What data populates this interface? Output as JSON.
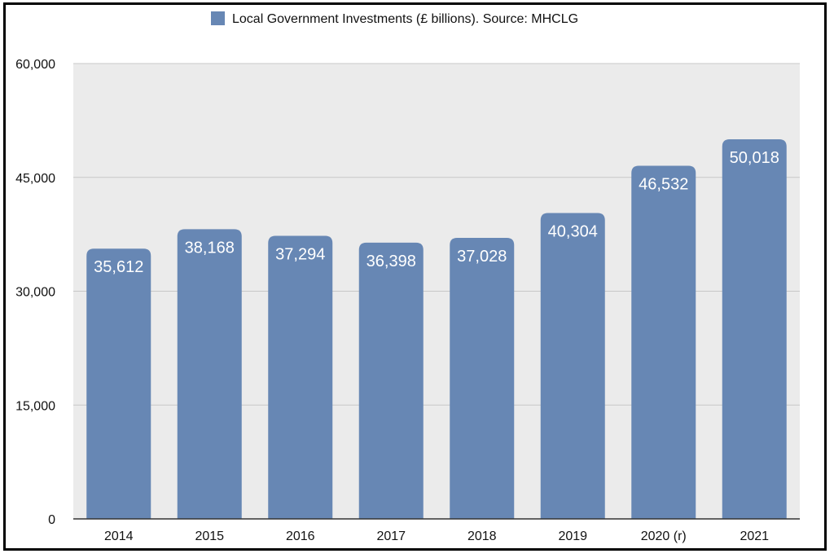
{
  "chart_data": {
    "type": "bar",
    "categories": [
      "2014",
      "2015",
      "2016",
      "2017",
      "2018",
      "2019",
      "2020 (r)",
      "2021"
    ],
    "series": [
      {
        "name": "Local Government Investments (£ billions). Source: MHCLG",
        "values": [
          35612,
          38168,
          37294,
          36398,
          37028,
          40304,
          46532,
          50018
        ]
      }
    ],
    "data_labels": [
      "35,612",
      "38,168",
      "37,294",
      "36,398",
      "37,028",
      "40,304",
      "46,532",
      "50,018"
    ],
    "y_ticks": [
      "0",
      "15,000",
      "30,000",
      "45,000",
      "60,000"
    ],
    "ylim": [
      0,
      60000
    ],
    "grid": true,
    "legend_position": "top-center",
    "colors": {
      "bar": "#6787B4",
      "plot_background": "#EBEBEB",
      "grid": "#C8C8C8",
      "axis": "#333333"
    }
  }
}
